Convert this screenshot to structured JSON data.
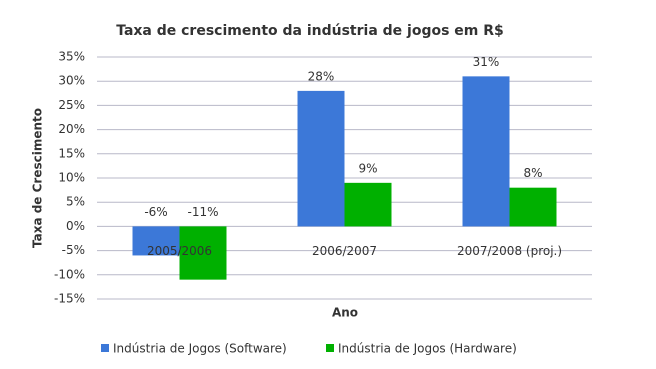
{
  "chart_data": {
    "type": "bar",
    "title": "Taxa de crescimento da indústria de jogos em R$",
    "x_label": "Ano",
    "y_label": "Taxa de Crescimento",
    "categories": [
      "2005/2006",
      "2006/2007",
      "2007/2008 (proj.)"
    ],
    "series": [
      {
        "name": "Indústria de Jogos (Software)",
        "color": "#3c78d8",
        "values": [
          -6,
          28,
          31
        ],
        "value_labels": [
          "-6%",
          "28%",
          "31%"
        ]
      },
      {
        "name": "Indústria de Jogos (Hardware)",
        "color": "#00b000",
        "values": [
          -11,
          9,
          8
        ],
        "value_labels": [
          "-11%",
          "9%",
          "8%"
        ]
      }
    ],
    "ylim": [
      -15,
      35
    ],
    "yticks": [
      {
        "value": -15,
        "label": "-15%"
      },
      {
        "value": -10,
        "label": "-10%"
      },
      {
        "value": -5,
        "label": "-5%"
      },
      {
        "value": 0,
        "label": "0%"
      },
      {
        "value": 5,
        "label": "5%"
      },
      {
        "value": 10,
        "label": "10%"
      },
      {
        "value": 15,
        "label": "15%"
      },
      {
        "value": 20,
        "label": "20%"
      },
      {
        "value": 25,
        "label": "25%"
      },
      {
        "value": 30,
        "label": "30%"
      },
      {
        "value": 35,
        "label": "35%"
      }
    ],
    "grid": true,
    "legend": "bottom"
  }
}
